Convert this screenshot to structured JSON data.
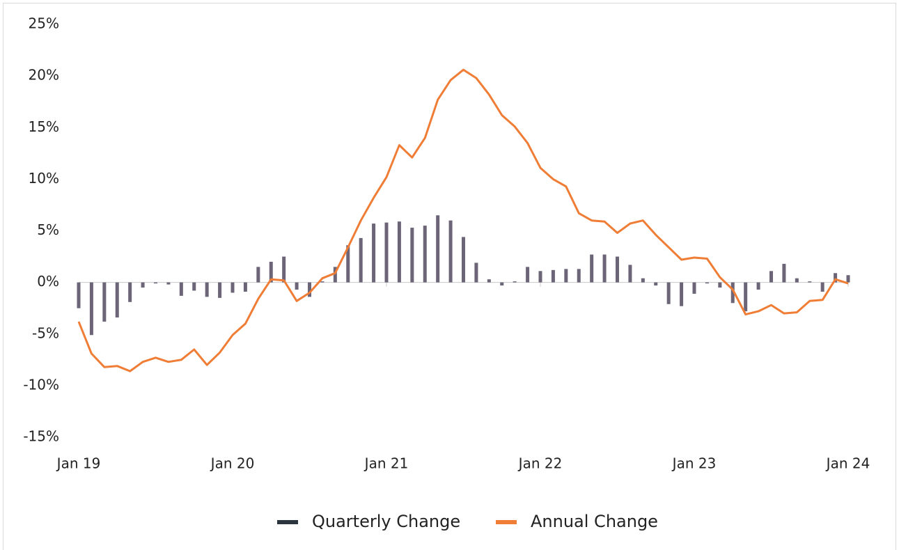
{
  "chart_data": {
    "type": "bar_line",
    "categories": [
      "Jan 19",
      null,
      null,
      null,
      null,
      null,
      null,
      null,
      null,
      null,
      null,
      null,
      "Jan 20",
      null,
      null,
      null,
      null,
      null,
      null,
      null,
      null,
      null,
      null,
      null,
      "Jan 21",
      null,
      null,
      null,
      null,
      null,
      null,
      null,
      null,
      null,
      null,
      null,
      "Jan 22",
      null,
      null,
      null,
      null,
      null,
      null,
      null,
      null,
      null,
      null,
      null,
      "Jan 23",
      null,
      null,
      null,
      null,
      null,
      null,
      null,
      null,
      null,
      null,
      null,
      "Jan 24"
    ],
    "series": [
      {
        "name": "Quarterly Change",
        "type": "bar",
        "color": "#6b6577",
        "values": [
          -2.5,
          -5.1,
          -3.8,
          -3.4,
          -1.9,
          -0.5,
          -0.1,
          -0.2,
          -1.3,
          -0.8,
          -1.4,
          -1.5,
          -1.0,
          -0.9,
          1.5,
          2.0,
          2.5,
          -0.7,
          -1.4,
          0.1,
          1.5,
          3.6,
          4.3,
          5.7,
          5.8,
          5.9,
          5.3,
          5.5,
          6.5,
          6.0,
          4.4,
          1.9,
          0.3,
          -0.3,
          0.1,
          1.5,
          1.1,
          1.2,
          1.3,
          1.3,
          2.7,
          2.7,
          2.5,
          1.7,
          0.4,
          -0.3,
          -2.1,
          -2.3,
          -1.1,
          -0.1,
          -0.5,
          -2.0,
          -2.8,
          -0.7,
          1.1,
          1.8,
          0.4,
          0.1,
          -0.9,
          0.9,
          0.7
        ]
      },
      {
        "name": "Annual Change",
        "type": "line",
        "color": "#ef7d35",
        "values": [
          -3.8,
          -6.9,
          -8.2,
          -8.1,
          -8.6,
          -7.7,
          -7.3,
          -7.7,
          -7.5,
          -6.5,
          -8.0,
          -6.8,
          -5.1,
          -4.0,
          -1.6,
          0.3,
          0.2,
          -1.8,
          -1.0,
          0.4,
          0.9,
          3.4,
          6.0,
          8.2,
          10.2,
          13.3,
          12.1,
          14.0,
          17.7,
          19.6,
          20.6,
          19.8,
          18.2,
          16.2,
          15.1,
          13.5,
          11.1,
          10.0,
          9.3,
          6.7,
          6.0,
          5.9,
          4.8,
          5.7,
          6.0,
          4.6,
          3.4,
          2.2,
          2.4,
          2.3,
          0.5,
          -0.7,
          -3.1,
          -2.8,
          -2.2,
          -3.0,
          -2.9,
          -1.8,
          -1.7,
          0.3,
          -0.1
        ]
      }
    ],
    "ylim": [
      -15,
      25
    ],
    "yticks": [
      {
        "value": -15,
        "label": "-15%"
      },
      {
        "value": -10,
        "label": "-10%"
      },
      {
        "value": -5,
        "label": "-5%"
      },
      {
        "value": 0,
        "label": "0%"
      },
      {
        "value": 5,
        "label": "5%"
      },
      {
        "value": 10,
        "label": "10%"
      },
      {
        "value": 15,
        "label": "15%"
      },
      {
        "value": 20,
        "label": "20%"
      },
      {
        "value": 25,
        "label": "25%"
      }
    ],
    "grid": false,
    "legend": "bottom"
  }
}
